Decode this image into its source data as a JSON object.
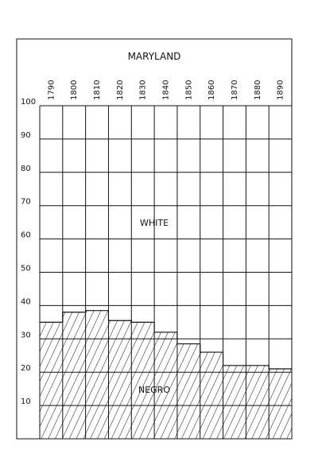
{
  "chart_data": {
    "type": "area",
    "title": "MARYLAND",
    "categories": [
      "1790",
      "1800",
      "1810",
      "1820",
      "1830",
      "1840",
      "1850",
      "1860",
      "1870",
      "1880",
      "1890"
    ],
    "series": [
      {
        "name": "NEGRO",
        "values": [
          35,
          38,
          38.5,
          35.5,
          35,
          32,
          28.5,
          26,
          22,
          22,
          21
        ]
      },
      {
        "name": "WHITE",
        "values": [
          65,
          62,
          61.5,
          64.5,
          65,
          68,
          71.5,
          74,
          78,
          78,
          79
        ]
      }
    ],
    "ylim": [
      0,
      100
    ],
    "yticks": [
      "100",
      "90",
      "80",
      "70",
      "60",
      "50",
      "40",
      "30",
      "20",
      "10"
    ],
    "grid": true,
    "colors": {
      "line": "#111111",
      "background": "#ffffff",
      "hatch": "#111111"
    }
  }
}
